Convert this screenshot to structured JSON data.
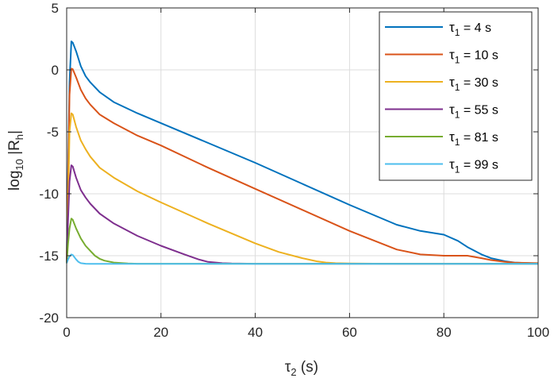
{
  "chart_data": {
    "type": "line",
    "xlabel": {
      "symbol": "τ",
      "sub": "2",
      "rest": " (s)"
    },
    "ylabel": {
      "prefix": "log",
      "sub": "10",
      "rest": " |R",
      "sub2": "h",
      "tail": "|"
    },
    "xlim": [
      0,
      100
    ],
    "ylim": [
      -20,
      5
    ],
    "xticks": [
      0,
      20,
      40,
      60,
      80,
      100
    ],
    "yticks": [
      5,
      0,
      -5,
      -10,
      -15,
      -20
    ],
    "xtick_labels": [
      "0",
      "20",
      "40",
      "60",
      "80",
      "100"
    ],
    "ytick_labels": [
      "5",
      "0",
      "-5",
      "-10",
      "-15",
      "-20"
    ],
    "grid": true,
    "legend": "top-right",
    "series": [
      {
        "symbol": "τ",
        "sub": "1",
        "rest": " = 4 s",
        "color": "#0072BD",
        "x": [
          0,
          0.3,
          0.6,
          1,
          1.3,
          2,
          3,
          4,
          5,
          7,
          10,
          15,
          20,
          30,
          40,
          50,
          60,
          70,
          75,
          80,
          83,
          85,
          88,
          90,
          93,
          95,
          98,
          100
        ],
        "y": [
          -15.6,
          -8,
          -1,
          2.3,
          2.2,
          1.5,
          0.3,
          -0.5,
          -1.0,
          -1.8,
          -2.6,
          -3.5,
          -4.3,
          -5.9,
          -7.5,
          -9.2,
          -10.9,
          -12.5,
          -13.0,
          -13.3,
          -13.8,
          -14.3,
          -14.9,
          -15.2,
          -15.45,
          -15.55,
          -15.6,
          -15.62
        ]
      },
      {
        "symbol": "τ",
        "sub": "1",
        "rest": " = 10 s",
        "color": "#D95319",
        "x": [
          0,
          0.3,
          0.6,
          1,
          1.3,
          2,
          3,
          4,
          5,
          7,
          10,
          15,
          20,
          30,
          40,
          50,
          60,
          70,
          75,
          80,
          85,
          88,
          90,
          93,
          95,
          100
        ],
        "y": [
          -15.6,
          -9,
          -2,
          0.1,
          0.05,
          -0.6,
          -1.6,
          -2.3,
          -2.8,
          -3.6,
          -4.3,
          -5.3,
          -6.1,
          -7.9,
          -9.6,
          -11.3,
          -13.0,
          -14.5,
          -14.9,
          -15.0,
          -15.0,
          -15.2,
          -15.35,
          -15.5,
          -15.56,
          -15.6
        ]
      },
      {
        "symbol": "τ",
        "sub": "1",
        "rest": " = 30 s",
        "color": "#EDB120",
        "x": [
          0,
          0.3,
          0.6,
          1,
          1.3,
          2,
          3,
          4,
          5,
          7,
          10,
          15,
          20,
          30,
          40,
          45,
          50,
          53,
          55,
          57,
          60,
          65,
          70,
          100
        ],
        "y": [
          -15.6,
          -11,
          -5,
          -3.5,
          -3.6,
          -4.6,
          -5.7,
          -6.4,
          -7.0,
          -7.9,
          -8.7,
          -9.8,
          -10.7,
          -12.4,
          -14.0,
          -14.7,
          -15.2,
          -15.45,
          -15.55,
          -15.6,
          -15.62,
          -15.64,
          -15.65,
          -15.65
        ]
      },
      {
        "symbol": "τ",
        "sub": "1",
        "rest": " = 55 s",
        "color": "#7E2F8E",
        "x": [
          0,
          0.3,
          0.6,
          1,
          1.3,
          2,
          3,
          4,
          5,
          7,
          10,
          15,
          20,
          25,
          28,
          30,
          33,
          35,
          40,
          100
        ],
        "y": [
          -15.6,
          -12,
          -9,
          -7.7,
          -7.8,
          -8.7,
          -9.7,
          -10.3,
          -10.8,
          -11.6,
          -12.4,
          -13.4,
          -14.2,
          -14.9,
          -15.3,
          -15.5,
          -15.6,
          -15.63,
          -15.65,
          -15.65
        ]
      },
      {
        "symbol": "τ",
        "sub": "1",
        "rest": " = 81 s",
        "color": "#77AC30",
        "x": [
          0,
          0.3,
          0.6,
          1,
          1.3,
          2,
          3,
          4,
          5,
          6,
          7,
          8,
          10,
          13,
          15,
          100
        ],
        "y": [
          -15.6,
          -14,
          -12.8,
          -12.0,
          -12.1,
          -12.8,
          -13.6,
          -14.2,
          -14.6,
          -15.0,
          -15.25,
          -15.4,
          -15.55,
          -15.62,
          -15.65,
          -15.65
        ]
      },
      {
        "symbol": "τ",
        "sub": "1",
        "rest": " = 99 s",
        "color": "#4DBEEE",
        "x": [
          0,
          0.3,
          0.6,
          1,
          1.3,
          2,
          2.5,
          3,
          4,
          5,
          100
        ],
        "y": [
          -15.6,
          -15.3,
          -15.05,
          -14.9,
          -14.95,
          -15.3,
          -15.5,
          -15.6,
          -15.65,
          -15.66,
          -15.66
        ]
      }
    ]
  }
}
